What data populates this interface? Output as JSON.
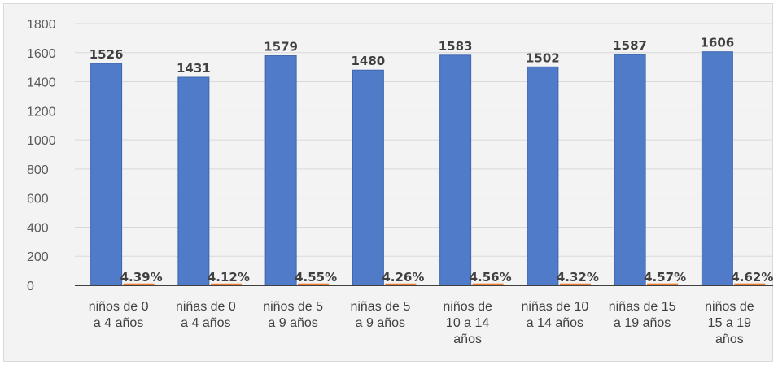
{
  "chart_data": {
    "type": "bar",
    "categories": [
      "niños de 0 a 4 años",
      "niñas de 0 a 4 años",
      "niños de 5 a 9 años",
      "niñas de 5 a 9 años",
      "niños de 10 a 14 años",
      "niñas de 10 a 14 años",
      "niñas de 15 a 19 años",
      "niños de 15 a 19 años"
    ],
    "category_lines": [
      [
        "niños de 0",
        "a 4 años"
      ],
      [
        "niñas de  0",
        "a 4 años"
      ],
      [
        "niños de 5",
        "a 9 años"
      ],
      [
        "niñas de 5",
        "a 9 años"
      ],
      [
        "niños de",
        "10 a 14",
        "años"
      ],
      [
        "niñas de 10",
        "a 14 años"
      ],
      [
        "niñas de 15",
        "a 19 años"
      ],
      [
        "niños de",
        "15 a 19",
        "años"
      ]
    ],
    "series": [
      {
        "values": [
          1526,
          1431,
          1579,
          1480,
          1583,
          1502,
          1587,
          1606
        ],
        "color": "#4f7bc9"
      },
      {
        "values": [
          4.39,
          4.12,
          4.55,
          4.26,
          4.56,
          4.32,
          4.57,
          4.62
        ],
        "color": "#ed7d31"
      }
    ],
    "value_labels": [
      "1526",
      "1431",
      "1579",
      "1480",
      "1583",
      "1502",
      "1587",
      "1606"
    ],
    "percent_labels": [
      "4.39%",
      "4.12%",
      "4.55%",
      "4.26%",
      "4.56%",
      "4.32%",
      "4.57%",
      "4.62%"
    ],
    "yticks": [
      "0",
      "200",
      "400",
      "600",
      "800",
      "1000",
      "1200",
      "1400",
      "1600",
      "1800"
    ],
    "ylim": [
      0,
      1800
    ],
    "title": "",
    "xlabel": "",
    "ylabel": "",
    "grid": true,
    "legend": "none"
  }
}
